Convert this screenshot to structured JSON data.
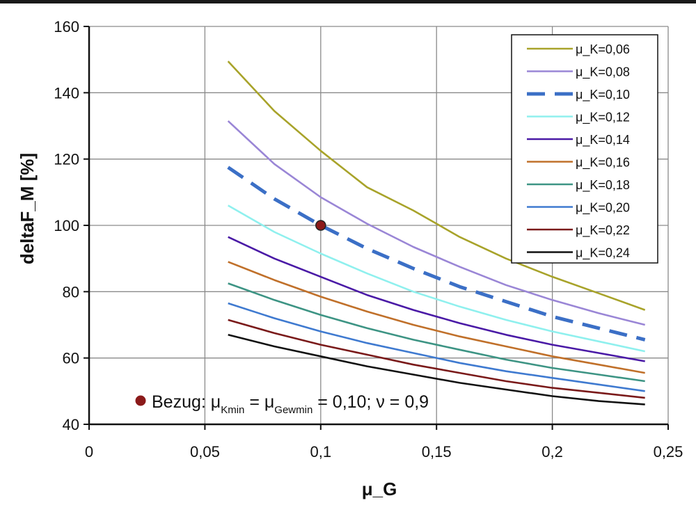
{
  "chart_data": {
    "type": "line",
    "title": "",
    "xlabel": "μ_G",
    "ylabel": "deltaF_M [%]",
    "xlim": [
      0,
      0.25
    ],
    "ylim": [
      40,
      160
    ],
    "x_ticks": [
      0,
      0.05,
      0.1,
      0.15,
      0.2,
      0.25
    ],
    "x_tick_labels": [
      "0",
      "0,05",
      "0,1",
      "0,15",
      "0,2",
      "0,25"
    ],
    "y_ticks": [
      40,
      60,
      80,
      100,
      120,
      140,
      160
    ],
    "y_tick_labels": [
      "40",
      "60",
      "80",
      "100",
      "120",
      "140",
      "160"
    ],
    "grid": true,
    "legend_position": "top-right",
    "x": [
      0.06,
      0.08,
      0.1,
      0.12,
      0.14,
      0.16,
      0.18,
      0.2,
      0.22,
      0.24
    ],
    "series": [
      {
        "name": "μ_K=0,06",
        "color": "#a8a32a",
        "dashed": false,
        "values": [
          149.5,
          134.5,
          122.5,
          111.5,
          104.5,
          96.5,
          90,
          84.5,
          79.5,
          74.5
        ]
      },
      {
        "name": "μ_K=0,08",
        "color": "#9a86d6",
        "dashed": false,
        "values": [
          131.5,
          118.5,
          108.5,
          100.5,
          93.5,
          87.5,
          82,
          77.5,
          73.5,
          70
        ]
      },
      {
        "name": "μ_K=0,10",
        "color": "#3b6fc6",
        "dashed": true,
        "values": [
          117.5,
          108,
          100,
          93,
          87,
          81.5,
          77,
          72.5,
          69,
          65.5
        ]
      },
      {
        "name": "μ_K=0,12",
        "color": "#8ff0ee",
        "dashed": false,
        "values": [
          106,
          98,
          91.5,
          85.5,
          80,
          75.5,
          71.5,
          68,
          65,
          62
        ]
      },
      {
        "name": "μ_K=0,14",
        "color": "#4a1aa6",
        "dashed": false,
        "values": [
          96.5,
          90,
          84.5,
          79,
          74.5,
          70.5,
          67,
          64,
          61.5,
          59
        ]
      },
      {
        "name": "μ_K=0,16",
        "color": "#c0702a",
        "dashed": false,
        "values": [
          89,
          83.5,
          78.5,
          74,
          70,
          66.5,
          63.5,
          60.5,
          58,
          55.5
        ]
      },
      {
        "name": "μ_K=0,18",
        "color": "#3d9484",
        "dashed": false,
        "values": [
          82.5,
          77.5,
          73,
          69,
          65.5,
          62.5,
          59.5,
          57,
          55,
          53
        ]
      },
      {
        "name": "μ_K=0,20",
        "color": "#3f7ad0",
        "dashed": false,
        "values": [
          76.5,
          72,
          68,
          64.5,
          61.5,
          58.5,
          56,
          54,
          52,
          50
        ]
      },
      {
        "name": "μ_K=0,22",
        "color": "#7a1a1a",
        "dashed": false,
        "values": [
          71.5,
          67.5,
          64,
          61,
          58,
          55.5,
          53,
          51,
          49.5,
          48
        ]
      },
      {
        "name": "μ_K=0,24",
        "color": "#111111",
        "dashed": false,
        "values": [
          67,
          63.5,
          60.5,
          57.5,
          55,
          52.5,
          50.5,
          48.5,
          47,
          46
        ]
      }
    ],
    "reference_point": {
      "x": 0.1,
      "y": 100,
      "color": "#8b1a1a"
    },
    "annotation": {
      "marker_color": "#8b1a1a",
      "prefix": "Bezug: μ",
      "sub1": "Kmin",
      "mid": " = μ",
      "sub2": "Gewmin",
      "suffix": " = 0,10; ν = 0,9"
    }
  }
}
